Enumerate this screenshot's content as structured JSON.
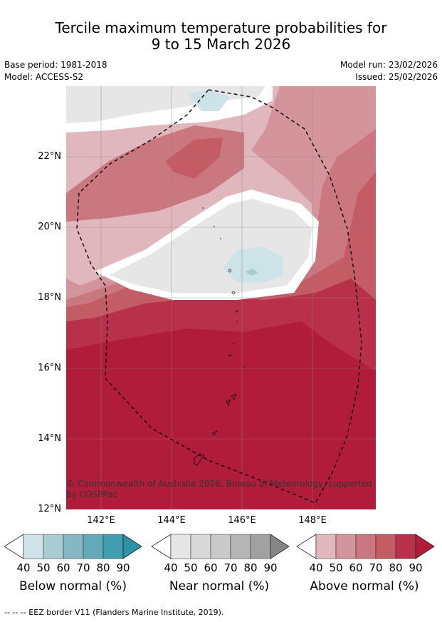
{
  "title_line1": "Tercile maximum temperature probabilities for",
  "title_line2": "9 to 15 March 2026",
  "base_period": "Base period: 1981-2018",
  "model": "Model: ACCESS-S2",
  "model_run": "Model run: 23/02/2026",
  "issued": "Issued: 25/02/2026",
  "credit": "© Commonwealth of Australia 2026, Bureau of Meteorology, supported by COSPPac",
  "footer": "-- -- -- EEZ border V11 (Flanders Marine Institute, 2019).",
  "lat_labels": [
    "22°N",
    "20°N",
    "18°N",
    "16°N",
    "14°N",
    "12°N"
  ],
  "lon_labels": [
    "142°E",
    "144°E",
    "146°E",
    "148°E"
  ],
  "legend": {
    "below": {
      "label": "Below normal (%)",
      "colors": [
        "#cde3e8",
        "#a9ccd3",
        "#86b8c3",
        "#64a9b8",
        "#409eb0",
        "#2b93a5"
      ]
    },
    "near": {
      "label": "Near normal (%)",
      "colors": [
        "#e6e6e6",
        "#d8d8d8",
        "#c9c9c9",
        "#b6b6b6",
        "#a1a1a1",
        "#858585"
      ]
    },
    "above": {
      "label": "Above normal (%)",
      "colors": [
        "#dfb7bd",
        "#d4949b",
        "#cb777f",
        "#c45c66",
        "#b9304a",
        "#b01c3a"
      ]
    },
    "ticks": [
      "40",
      "50",
      "60",
      "70",
      "80",
      "90"
    ]
  }
}
